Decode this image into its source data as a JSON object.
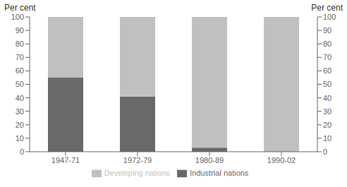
{
  "chart_data": {
    "type": "bar",
    "stacked": true,
    "categories": [
      "1947-71",
      "1972-79",
      "1980-89",
      "1990-02"
    ],
    "series": [
      {
        "name": "Industrial nations",
        "color": "#696969",
        "values": [
          55,
          41,
          3,
          0
        ]
      },
      {
        "name": "Developing nations",
        "color": "#c0c0c0",
        "values": [
          45,
          59,
          97,
          100
        ]
      }
    ],
    "ylabel": "Per cent",
    "y2label": "Per cent",
    "ylim": [
      0,
      100
    ],
    "yticks": [
      0,
      10,
      20,
      30,
      40,
      50,
      60,
      70,
      80,
      90,
      100
    ],
    "y2lim": [
      0,
      100
    ],
    "y2ticks": [
      0,
      10,
      20,
      30,
      40,
      50,
      60,
      70,
      80,
      90,
      100
    ],
    "grid": false,
    "legend": "bottom"
  }
}
